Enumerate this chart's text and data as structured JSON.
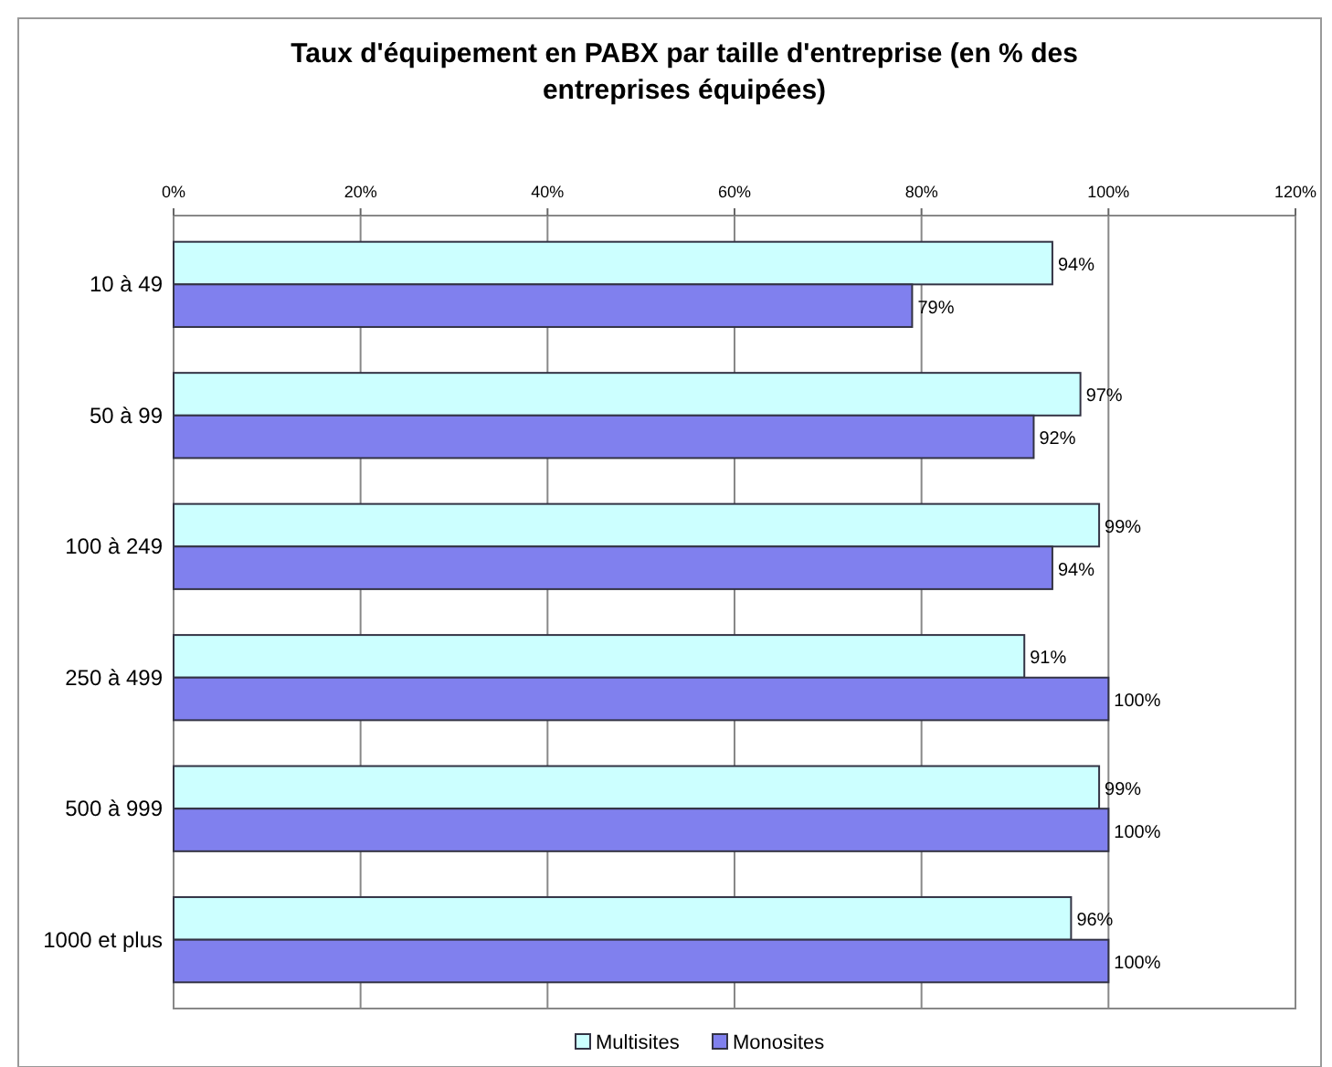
{
  "chart_data": {
    "type": "bar",
    "orientation": "horizontal",
    "title": "Taux d'équipement en PABX par taille d'entreprise (en % des entreprises équipées)",
    "categories": [
      "10 à 49",
      "50 à 99",
      "100 à 249",
      "250 à 499",
      "500 à 999",
      "1000 et plus"
    ],
    "series": [
      {
        "name": "Multisites",
        "color": "#ccffff",
        "values": [
          94,
          97,
          99,
          91,
          99,
          96
        ],
        "value_labels": [
          "94%",
          "97%",
          "99%",
          "91%",
          "99%",
          "96%"
        ]
      },
      {
        "name": "Monosites",
        "color": "#8080ee",
        "values": [
          79,
          92,
          94,
          100,
          100,
          100
        ],
        "value_labels": [
          "79%",
          "92%",
          "94%",
          "100%",
          "100%",
          "100%"
        ]
      }
    ],
    "xlim": [
      0,
      120
    ],
    "xticks": [
      {
        "value": 0,
        "label": "0%"
      },
      {
        "value": 20,
        "label": "20%"
      },
      {
        "value": 40,
        "label": "40%"
      },
      {
        "value": 60,
        "label": "60%"
      },
      {
        "value": 80,
        "label": "80%"
      },
      {
        "value": 100,
        "label": "100%"
      },
      {
        "value": 120,
        "label": "120%"
      }
    ],
    "grid": "x",
    "legend": "bottom"
  }
}
